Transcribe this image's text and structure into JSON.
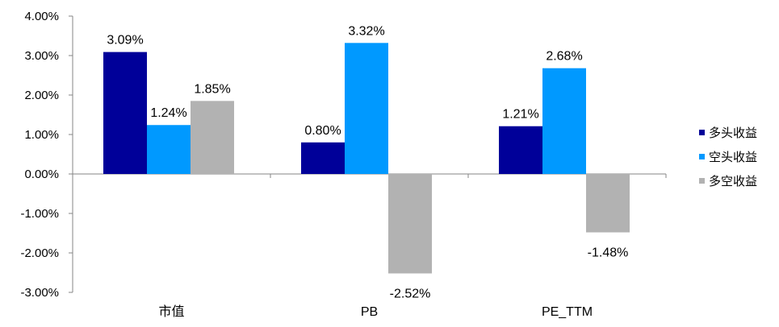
{
  "chart_data": {
    "type": "bar",
    "categories": [
      "市值",
      "PB",
      "PE_TTM"
    ],
    "series": [
      {
        "name": "多头收益",
        "values": [
          3.09,
          0.8,
          1.21
        ],
        "labels": [
          "3.09%",
          "0.80%",
          "1.21%"
        ],
        "color": "#000099"
      },
      {
        "name": "空头收益",
        "values": [
          1.24,
          3.32,
          2.68
        ],
        "labels": [
          "1.24%",
          "3.32%",
          "2.68%"
        ],
        "color": "#0099FF"
      },
      {
        "name": "多空收益",
        "values": [
          1.85,
          -2.52,
          -1.48
        ],
        "labels": [
          "1.85%",
          "-2.52%",
          "-1.48%"
        ],
        "color": "#B2B2B2"
      }
    ],
    "yticks": [
      4,
      3,
      2,
      1,
      0,
      -1,
      -2,
      -3
    ],
    "ytick_labels": [
      "4.00%",
      "3.00%",
      "2.00%",
      "1.00%",
      "0.00%",
      "-1.00%",
      "-2.00%",
      "-3.00%"
    ],
    "ylim": [
      -3,
      4
    ],
    "grid": false,
    "legend": "right"
  }
}
